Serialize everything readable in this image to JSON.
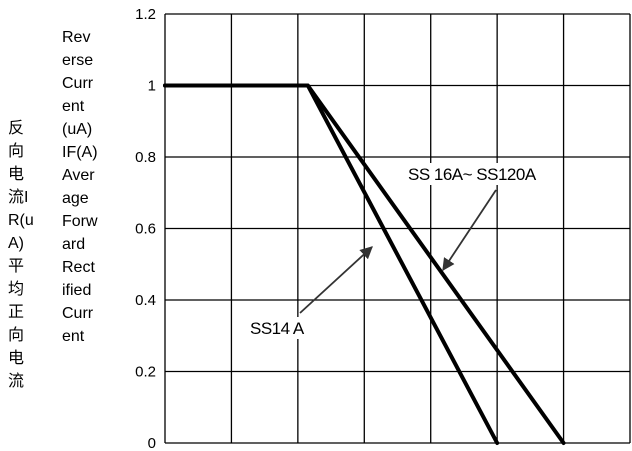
{
  "chart_data": {
    "type": "line",
    "ylabel_cn": "反向电流IR(uA)平均正向电流",
    "ylabel_en": "Reverse Current(uA) IF(A) Average Forward Rectified Current",
    "y_ticks": [
      "0",
      "0.2",
      "0.4",
      "0.6",
      "0.8",
      "1",
      "1.2"
    ],
    "ylim": [
      0,
      1.2
    ],
    "x_grid_divisions": 7,
    "grid": true,
    "series": [
      {
        "name": "SS14 A",
        "points": [
          [
            0,
            1
          ],
          [
            2.15,
            1
          ],
          [
            5,
            0
          ]
        ]
      },
      {
        "name": "SS 16A~ SS120A",
        "points": [
          [
            0,
            1
          ],
          [
            2.15,
            1
          ],
          [
            6,
            0
          ]
        ]
      }
    ],
    "annotations": [
      {
        "label": "SS14 A",
        "target_series": 0
      },
      {
        "label": "SS 16A~ SS120A",
        "target_series": 1
      }
    ],
    "colors": {
      "line": "#000000",
      "grid": "#000000"
    }
  }
}
